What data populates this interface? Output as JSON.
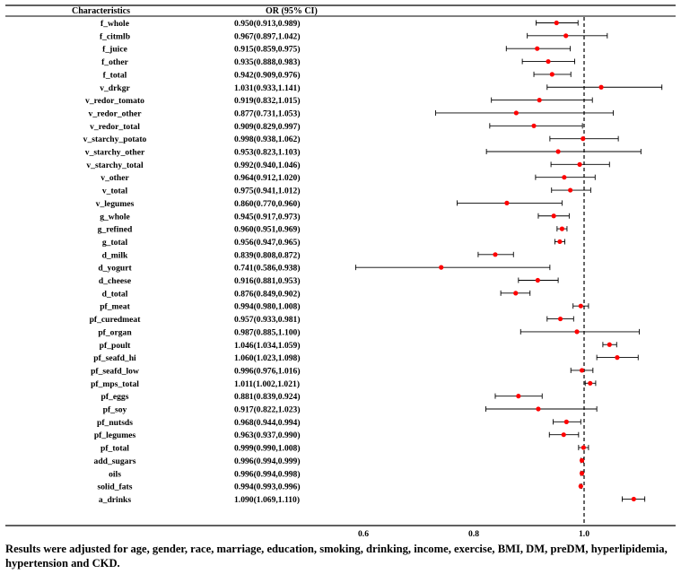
{
  "chart_data": {
    "type": "forest",
    "columns": {
      "characteristics": "Characteristics",
      "or": "OR (95% CI)"
    },
    "x_ticks": [
      "0.6",
      "0.8",
      "1.0"
    ],
    "xlim": [
      0.5,
      1.18
    ],
    "reference_value": 1.0,
    "marker_color": "#ff0000",
    "rows": [
      {
        "name": "f_whole",
        "text": "0.950(0.913,0.989)",
        "or": 0.95,
        "low": 0.913,
        "high": 0.989
      },
      {
        "name": "f_citmlb",
        "text": "0.967(0.897,1.042)",
        "or": 0.967,
        "low": 0.897,
        "high": 1.042
      },
      {
        "name": "f_juice",
        "text": "0.915(0.859,0.975)",
        "or": 0.915,
        "low": 0.859,
        "high": 0.975
      },
      {
        "name": "f_other",
        "text": "0.935(0.888,0.983)",
        "or": 0.935,
        "low": 0.888,
        "high": 0.983
      },
      {
        "name": "f_total",
        "text": "0.942(0.909,0.976)",
        "or": 0.942,
        "low": 0.909,
        "high": 0.976
      },
      {
        "name": "v_drkgr",
        "text": "1.031(0.933,1.141)",
        "or": 1.031,
        "low": 0.933,
        "high": 1.141
      },
      {
        "name": "v_redor_tomato",
        "text": "0.919(0.832,1.015)",
        "or": 0.919,
        "low": 0.832,
        "high": 1.015
      },
      {
        "name": "v_redor_other",
        "text": "0.877(0.731,1.053)",
        "or": 0.877,
        "low": 0.731,
        "high": 1.053
      },
      {
        "name": "v_redor_total",
        "text": "0.909(0.829,0.997)",
        "or": 0.909,
        "low": 0.829,
        "high": 0.997
      },
      {
        "name": "v_starchy_potato",
        "text": "0.998(0.938,1.062)",
        "or": 0.998,
        "low": 0.938,
        "high": 1.062
      },
      {
        "name": "v_starchy_other",
        "text": "0.953(0.823,1.103)",
        "or": 0.953,
        "low": 0.823,
        "high": 1.103
      },
      {
        "name": "v_starchy_total",
        "text": "0.992(0.940,1.046)",
        "or": 0.992,
        "low": 0.94,
        "high": 1.046
      },
      {
        "name": "v_other",
        "text": "0.964(0.912,1.020)",
        "or": 0.964,
        "low": 0.912,
        "high": 1.02
      },
      {
        "name": "v_total",
        "text": "0.975(0.941,1.012)",
        "or": 0.975,
        "low": 0.941,
        "high": 1.012
      },
      {
        "name": "v_legumes",
        "text": "0.860(0.770,0.960)",
        "or": 0.86,
        "low": 0.77,
        "high": 0.96
      },
      {
        "name": "g_whole",
        "text": "0.945(0.917,0.973)",
        "or": 0.945,
        "low": 0.917,
        "high": 0.973
      },
      {
        "name": "g_refined",
        "text": "0.960(0.951,0.969)",
        "or": 0.96,
        "low": 0.951,
        "high": 0.969
      },
      {
        "name": "g_total",
        "text": "0.956(0.947,0.965)",
        "or": 0.956,
        "low": 0.947,
        "high": 0.965
      },
      {
        "name": "d_milk",
        "text": "0.839(0.808,0.872)",
        "or": 0.839,
        "low": 0.808,
        "high": 0.872
      },
      {
        "name": "d_yogurt",
        "text": "0.741(0.586,0.938)",
        "or": 0.741,
        "low": 0.586,
        "high": 0.938
      },
      {
        "name": "d_cheese",
        "text": "0.916(0.881,0.953)",
        "or": 0.916,
        "low": 0.881,
        "high": 0.953
      },
      {
        "name": "d_total",
        "text": "0.876(0.849,0.902)",
        "or": 0.876,
        "low": 0.849,
        "high": 0.902
      },
      {
        "name": "pf_meat",
        "text": "0.994(0.980,1.008)",
        "or": 0.994,
        "low": 0.98,
        "high": 1.008
      },
      {
        "name": "pf_curedmeat",
        "text": "0.957(0.933,0.981)",
        "or": 0.957,
        "low": 0.933,
        "high": 0.981
      },
      {
        "name": "pf_organ",
        "text": "0.987(0.885,1.100)",
        "or": 0.987,
        "low": 0.885,
        "high": 1.1
      },
      {
        "name": "pf_poult",
        "text": "1.046(1.034,1.059)",
        "or": 1.046,
        "low": 1.034,
        "high": 1.059
      },
      {
        "name": "pf_seafd_hi",
        "text": "1.060(1.023,1.098)",
        "or": 1.06,
        "low": 1.023,
        "high": 1.098
      },
      {
        "name": "pf_seafd_low",
        "text": "0.996(0.976,1.016)",
        "or": 0.996,
        "low": 0.976,
        "high": 1.016
      },
      {
        "name": "pf_mps_total",
        "text": "1.011(1.002,1.021)",
        "or": 1.011,
        "low": 1.002,
        "high": 1.021
      },
      {
        "name": "pf_eggs",
        "text": "0.881(0.839,0.924)",
        "or": 0.881,
        "low": 0.839,
        "high": 0.924
      },
      {
        "name": "pf_soy",
        "text": "0.917(0.822,1.023)",
        "or": 0.917,
        "low": 0.822,
        "high": 1.023
      },
      {
        "name": "pf_nutsds",
        "text": "0.968(0.944,0.994)",
        "or": 0.968,
        "low": 0.944,
        "high": 0.994
      },
      {
        "name": "pf_legumes",
        "text": "0.963(0.937,0.990)",
        "or": 0.963,
        "low": 0.937,
        "high": 0.99
      },
      {
        "name": "pf_total",
        "text": "0.999(0.990,1.008)",
        "or": 0.999,
        "low": 0.99,
        "high": 1.008
      },
      {
        "name": "add_sugars",
        "text": "0.996(0.994,0.999)",
        "or": 0.996,
        "low": 0.994,
        "high": 0.999
      },
      {
        "name": "oils",
        "text": "0.996(0.994,0.998)",
        "or": 0.996,
        "low": 0.994,
        "high": 0.998
      },
      {
        "name": "solid_fats",
        "text": "0.994(0.993,0.996)",
        "or": 0.994,
        "low": 0.993,
        "high": 0.996
      },
      {
        "name": "a_drinks",
        "text": "1.090(1.069,1.110)",
        "or": 1.09,
        "low": 1.069,
        "high": 1.11
      }
    ]
  },
  "footnote": "Results were adjusted for age, gender, race, marriage, education, smoking, drinking, income, exercise, BMI, DM, preDM, hyperlipidemia, hypertension and CKD."
}
